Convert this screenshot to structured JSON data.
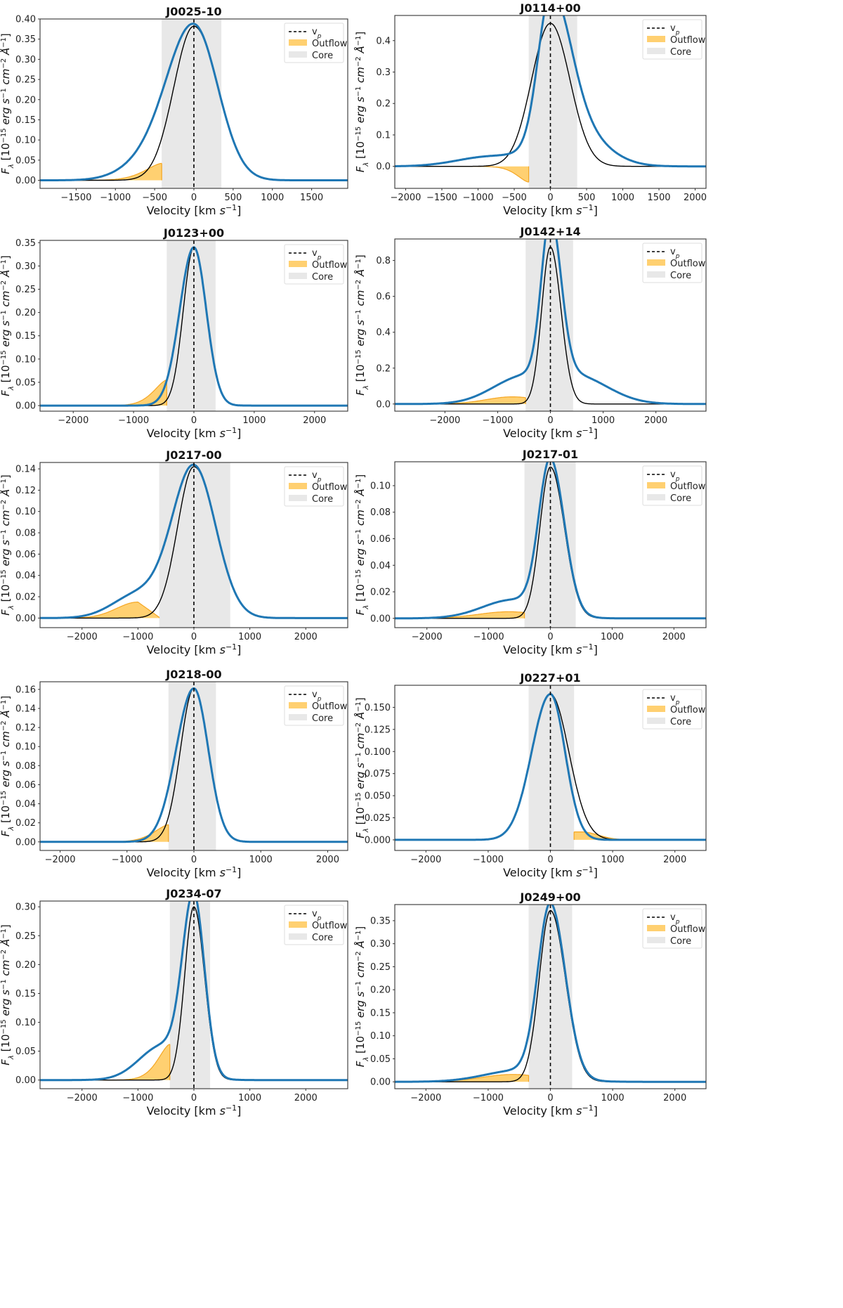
{
  "figure": {
    "layout": "5 rows x 2 columns of emission-line profile panels"
  },
  "legend_labels": {
    "vp": "v",
    "vp_sub": "p",
    "outflow": "Outflow",
    "core": "Core"
  },
  "colors": {
    "total": "#1f77b4",
    "narrow": "#000000",
    "outflow_fill": "#ffc44d",
    "outflow_edge": "#f5a623",
    "core_band": "#e8e8e8",
    "vp_line": "#000000"
  },
  "chart_data": [
    {
      "type": "line",
      "title": "J0025-10",
      "xlabel": "Velocity [km s^-1]",
      "ylabel": "F_λ [10^-15 erg s^-1 cm^-2 Å^-1]",
      "xlim": [
        -1960,
        1960
      ],
      "ylim": [
        -0.02,
        0.4
      ],
      "xticks": [
        -1500,
        -1000,
        -500,
        0,
        500,
        1000,
        1500
      ],
      "yticks": [
        0,
        0.05,
        0.1,
        0.15,
        0.2,
        0.25,
        0.3,
        0.35,
        0.4
      ],
      "ytick_decimals": 2,
      "core_range": [
        -410,
        350
      ],
      "v_p": 0,
      "peak": 0.382,
      "total_sigma_left": 345,
      "total_sigma_right": 305,
      "total_wing": {
        "amp": 0.035,
        "center": -620,
        "sigma": 330
      },
      "narrow_sigma_left": 255,
      "outflow_range": [
        -1960,
        -410
      ],
      "outflow_max": 0.042
    },
    {
      "type": "line",
      "title": "J0114+00",
      "xlabel": "Velocity [km s^-1]",
      "ylabel": "F_λ [10^-15 erg s^-1 cm^-2 Å^-1]",
      "xlim": [
        -2150,
        2150
      ],
      "ylim": [
        -0.07,
        0.48
      ],
      "xticks": [
        -2000,
        -1500,
        -1000,
        -500,
        0,
        500,
        1000,
        1500,
        2000
      ],
      "yticks": [
        0,
        0.1,
        0.2,
        0.3,
        0.4
      ],
      "ytick_decimals": 1,
      "core_range": [
        -300,
        370
      ],
      "v_p": 0,
      "peak": 0.455,
      "total_sigma_left": 170,
      "total_sigma_right": 270,
      "total_wing": {
        "amp": 0.03,
        "center": -850,
        "sigma": 450
      },
      "total_shoulder": {
        "amp": 0.12,
        "center": 300,
        "sigma": 420
      },
      "narrow_sigma_left": 260,
      "outflow_range": [
        -2150,
        -300
      ],
      "outflow_max": -0.05
    },
    {
      "type": "line",
      "title": "J0123+00",
      "xlabel": "Velocity [km s^-1]",
      "ylabel": "F_λ [10^-15 erg s^-1 cm^-2 Å^-1]",
      "xlim": [
        -2550,
        2550
      ],
      "ylim": [
        -0.012,
        0.355
      ],
      "xticks": [
        -2000,
        -1000,
        0,
        1000,
        2000
      ],
      "yticks": [
        0,
        0.05,
        0.1,
        0.15,
        0.2,
        0.25,
        0.3,
        0.35
      ],
      "ytick_decimals": 2,
      "core_range": [
        -450,
        360
      ],
      "v_p": 0,
      "peak": 0.34,
      "total_sigma_left": 235,
      "total_sigma_right": 205,
      "total_wing": {
        "amp": 0.0,
        "center": -700,
        "sigma": 300
      },
      "narrow_sigma_left": 175,
      "outflow_range": [
        -2550,
        -450
      ],
      "outflow_max": 0.055
    },
    {
      "type": "line",
      "title": "J0142+14",
      "xlabel": "Velocity [km s^-1]",
      "ylabel": "F_λ [10^-15 erg s^-1 cm^-2 Å^-1]",
      "xlim": [
        -2950,
        2950
      ],
      "ylim": [
        -0.04,
        0.92
      ],
      "xticks": [
        -2000,
        -1000,
        0,
        1000,
        2000
      ],
      "yticks": [
        0,
        0.2,
        0.4,
        0.6,
        0.8
      ],
      "ytick_decimals": 1,
      "core_range": [
        -470,
        430
      ],
      "v_p": 0,
      "peak": 0.875,
      "total_sigma_left": 170,
      "total_sigma_right": 200,
      "total_wing": {
        "amp": 0.13,
        "center": -600,
        "sigma": 550
      },
      "total_shoulder": {
        "amp": 0.15,
        "center": 500,
        "sigma": 600
      },
      "narrow_sigma_left": 165,
      "outflow_range": [
        -2950,
        -470
      ],
      "outflow_max": 0.04
    },
    {
      "type": "line",
      "title": "J0217-00",
      "xlabel": "Velocity [km s^-1]",
      "ylabel": "F_λ [10^-15 erg s^-1 cm^-2 Å^-1]",
      "xlim": [
        -2750,
        2750
      ],
      "ylim": [
        -0.009,
        0.146
      ],
      "xticks": [
        -2000,
        -1000,
        0,
        1000,
        2000
      ],
      "yticks": [
        0,
        0.02,
        0.04,
        0.06,
        0.08,
        0.1,
        0.12,
        0.14
      ],
      "ytick_decimals": 2,
      "core_range": [
        -620,
        650
      ],
      "v_p": 0,
      "peak": 0.142,
      "total_sigma_left": 390,
      "total_sigma_right": 390,
      "total_wing": {
        "amp": 0.022,
        "center": -1000,
        "sigma": 450
      },
      "narrow_sigma_left": 290,
      "outflow_range": [
        -2750,
        -620
      ],
      "outflow_max": 0.015
    },
    {
      "type": "line",
      "title": "J0217-01",
      "xlabel": "Velocity [km s^-1]",
      "ylabel": "F_λ [10^-15 erg s^-1 cm^-2 Å^-1]",
      "xlim": [
        -2520,
        2520
      ],
      "ylim": [
        -0.007,
        0.118
      ],
      "xticks": [
        -2000,
        -1000,
        0,
        1000,
        2000
      ],
      "yticks": [
        0,
        0.02,
        0.04,
        0.06,
        0.08,
        0.1
      ],
      "ytick_decimals": 2,
      "core_range": [
        -420,
        410
      ],
      "v_p": 0,
      "peak": 0.114,
      "total_sigma_left": 185,
      "total_sigma_right": 225,
      "total_wing": {
        "amp": 0.014,
        "center": -600,
        "sigma": 500
      },
      "narrow_sigma_left": 170,
      "outflow_range": [
        -2520,
        -420
      ],
      "outflow_max": 0.005
    },
    {
      "type": "line",
      "title": "J0218-00",
      "xlabel": "Velocity [km s^-1]",
      "ylabel": "F_λ [10^-15 erg s^-1 cm^-2 Å^-1]",
      "xlim": [
        -2300,
        2300
      ],
      "ylim": [
        -0.009,
        0.168
      ],
      "xticks": [
        -2000,
        -1000,
        0,
        1000,
        2000
      ],
      "yticks": [
        0,
        0.02,
        0.04,
        0.06,
        0.08,
        0.1,
        0.12,
        0.14,
        0.16
      ],
      "ytick_decimals": 2,
      "core_range": [
        -380,
        330
      ],
      "v_p": 0,
      "peak": 0.161,
      "total_sigma_left": 265,
      "total_sigma_right": 215,
      "total_wing": {
        "amp": 0.0,
        "center": -700,
        "sigma": 300
      },
      "narrow_sigma_left": 200,
      "outflow_range": [
        -2300,
        -380
      ],
      "outflow_max": 0.018
    },
    {
      "type": "line",
      "title": "J0227+01",
      "xlabel": "Velocity [km s^-1]",
      "ylabel": "F_λ [10^-15 erg s^-1 cm^-2 Å^-1]",
      "xlim": [
        -2500,
        2500
      ],
      "ylim": [
        -0.012,
        0.175
      ],
      "xticks": [
        -2000,
        -1000,
        0,
        1000,
        2000
      ],
      "yticks": [
        0,
        0.025,
        0.05,
        0.075,
        0.1,
        0.125,
        0.15
      ],
      "ytick_decimals": 3,
      "core_range": [
        -350,
        380
      ],
      "v_p": 0,
      "peak": 0.165,
      "total_sigma_left": 300,
      "total_sigma_right": 235,
      "total_wing": {
        "amp": 0.0,
        "center": 700,
        "sigma": 300
      },
      "narrow_sigma_left": 300,
      "narrow_sigma_right": 295,
      "outflow_side": "right",
      "outflow_range": [
        380,
        2500
      ],
      "outflow_max": 0.009
    },
    {
      "type": "line",
      "title": "J0234-07",
      "xlabel": "Velocity [km s^-1]",
      "ylabel": "F_λ [10^-15 erg s^-1 cm^-2 Å^-1]",
      "xlim": [
        -2750,
        2750
      ],
      "ylim": [
        -0.015,
        0.31
      ],
      "xticks": [
        -2000,
        -1000,
        0,
        1000,
        2000
      ],
      "yticks": [
        0,
        0.05,
        0.1,
        0.15,
        0.2,
        0.25,
        0.3
      ],
      "ytick_decimals": 2,
      "core_range": [
        -430,
        290
      ],
      "v_p": 0,
      "peak": 0.3,
      "total_sigma_left": 200,
      "total_sigma_right": 190,
      "total_wing": {
        "amp": 0.06,
        "center": -550,
        "sigma": 420
      },
      "narrow_sigma_left": 165,
      "outflow_range": [
        -2750,
        -430
      ],
      "outflow_max": 0.062
    },
    {
      "type": "line",
      "title": "J0249+00",
      "xlabel": "Velocity [km s^-1]",
      "ylabel": "F_λ [10^-15 erg s^-1 cm^-2 Å^-1]",
      "xlim": [
        -2500,
        2500
      ],
      "ylim": [
        -0.015,
        0.385
      ],
      "xticks": [
        -2000,
        -1000,
        0,
        1000,
        2000
      ],
      "yticks": [
        0,
        0.05,
        0.1,
        0.15,
        0.2,
        0.25,
        0.3,
        0.35
      ],
      "ytick_decimals": 2,
      "core_range": [
        -350,
        350
      ],
      "v_p": 0,
      "peak": 0.372,
      "total_sigma_left": 200,
      "total_sigma_right": 240,
      "total_wing": {
        "amp": 0.025,
        "center": -500,
        "sigma": 550
      },
      "narrow_sigma_left": 180,
      "outflow_range": [
        -2500,
        -350
      ],
      "outflow_max": 0.016
    }
  ]
}
